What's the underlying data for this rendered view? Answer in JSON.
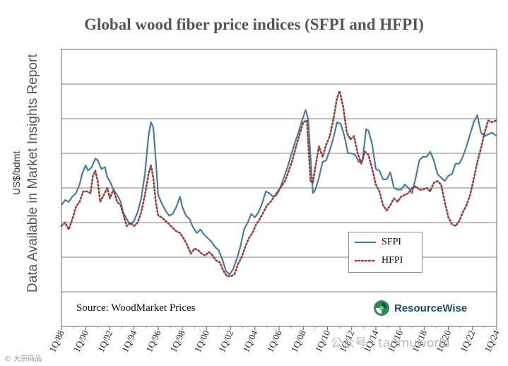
{
  "chart_data": {
    "type": "line",
    "title": "Global wood fiber price indices (SFPI and HFPI)",
    "ylabel": "US$/bdmt",
    "side_note": "Data Available in Market Insights Report",
    "source": "Source: WoodMarket Prices",
    "logo_text": "ResourceWise",
    "x_ticks": [
      "1Q/88",
      "1Q/90",
      "1Q/92",
      "1Q/94",
      "1Q/96",
      "1Q/98",
      "1Q/00",
      "1Q/02",
      "1Q/04",
      "1Q/06",
      "1Q/08",
      "1Q/10",
      "1Q/12",
      "1Q/14",
      "1Q/16",
      "1Q/18",
      "1Q/20",
      "1Q/22",
      "1Q/24"
    ],
    "x_range": [
      1988.0,
      2024.0
    ],
    "y_gridlines": 7,
    "y_range": [
      0,
      8
    ],
    "y_note": "Y-axis values are not labeled; series plotted in relative units.",
    "series": [
      {
        "name": "SFPI",
        "color": "#4a7ba6",
        "style": "solid",
        "points": [
          [
            1988.0,
            3.5
          ],
          [
            1988.3,
            3.65
          ],
          [
            1988.6,
            3.6
          ],
          [
            1988.9,
            3.75
          ],
          [
            1989.2,
            3.85
          ],
          [
            1989.5,
            4.1
          ],
          [
            1989.7,
            4.4
          ],
          [
            1990.0,
            4.65
          ],
          [
            1990.2,
            4.5
          ],
          [
            1990.5,
            4.6
          ],
          [
            1990.8,
            4.85
          ],
          [
            1991.0,
            4.8
          ],
          [
            1991.3,
            4.55
          ],
          [
            1991.6,
            4.6
          ],
          [
            1991.8,
            4.3
          ],
          [
            1992.0,
            4.2
          ],
          [
            1992.3,
            3.95
          ],
          [
            1992.6,
            3.8
          ],
          [
            1992.9,
            3.6
          ],
          [
            1993.1,
            3.3
          ],
          [
            1993.4,
            3.1
          ],
          [
            1993.7,
            2.95
          ],
          [
            1994.0,
            3.05
          ],
          [
            1994.3,
            3.3
          ],
          [
            1994.6,
            3.7
          ],
          [
            1994.9,
            4.4
          ],
          [
            1995.2,
            5.5
          ],
          [
            1995.4,
            5.9
          ],
          [
            1995.6,
            5.75
          ],
          [
            1995.8,
            4.8
          ],
          [
            1996.0,
            3.8
          ],
          [
            1996.3,
            3.55
          ],
          [
            1996.6,
            3.35
          ],
          [
            1996.9,
            3.2
          ],
          [
            1997.2,
            3.25
          ],
          [
            1997.5,
            3.45
          ],
          [
            1997.8,
            3.75
          ],
          [
            1998.0,
            3.45
          ],
          [
            1998.3,
            3.2
          ],
          [
            1998.6,
            3.1
          ],
          [
            1998.9,
            2.85
          ],
          [
            1999.2,
            2.7
          ],
          [
            1999.5,
            2.8
          ],
          [
            1999.8,
            2.65
          ],
          [
            2000.1,
            2.55
          ],
          [
            2000.4,
            2.45
          ],
          [
            2000.7,
            2.3
          ],
          [
            2001.0,
            2.2
          ],
          [
            2001.3,
            1.95
          ],
          [
            2001.6,
            1.6
          ],
          [
            2001.9,
            1.5
          ],
          [
            2002.2,
            1.65
          ],
          [
            2002.5,
            1.95
          ],
          [
            2002.8,
            2.3
          ],
          [
            2003.1,
            2.8
          ],
          [
            2003.4,
            3.0
          ],
          [
            2003.7,
            3.25
          ],
          [
            2004.0,
            3.15
          ],
          [
            2004.3,
            3.3
          ],
          [
            2004.6,
            3.55
          ],
          [
            2004.9,
            3.9
          ],
          [
            2005.2,
            3.85
          ],
          [
            2005.5,
            3.75
          ],
          [
            2005.8,
            3.8
          ],
          [
            2006.1,
            4.0
          ],
          [
            2006.4,
            4.3
          ],
          [
            2006.7,
            4.6
          ],
          [
            2007.0,
            4.95
          ],
          [
            2007.3,
            5.3
          ],
          [
            2007.6,
            5.6
          ],
          [
            2007.9,
            5.95
          ],
          [
            2008.2,
            6.25
          ],
          [
            2008.4,
            6.0
          ],
          [
            2008.6,
            4.9
          ],
          [
            2008.8,
            3.85
          ],
          [
            2009.0,
            3.95
          ],
          [
            2009.3,
            4.3
          ],
          [
            2009.6,
            4.75
          ],
          [
            2009.9,
            4.8
          ],
          [
            2010.2,
            5.1
          ],
          [
            2010.5,
            5.45
          ],
          [
            2010.8,
            5.9
          ],
          [
            2011.1,
            5.85
          ],
          [
            2011.4,
            5.5
          ],
          [
            2011.7,
            5.0
          ],
          [
            2012.0,
            5.0
          ],
          [
            2012.3,
            4.95
          ],
          [
            2012.6,
            4.75
          ],
          [
            2012.9,
            4.8
          ],
          [
            2013.2,
            5.7
          ],
          [
            2013.4,
            5.65
          ],
          [
            2013.7,
            5.25
          ],
          [
            2014.0,
            4.55
          ],
          [
            2014.3,
            4.5
          ],
          [
            2014.6,
            4.25
          ],
          [
            2014.9,
            4.25
          ],
          [
            2015.2,
            4.45
          ],
          [
            2015.5,
            4.0
          ],
          [
            2015.8,
            3.95
          ],
          [
            2016.1,
            3.95
          ],
          [
            2016.4,
            4.1
          ],
          [
            2016.7,
            4.0
          ],
          [
            2017.0,
            3.85
          ],
          [
            2017.3,
            4.3
          ],
          [
            2017.6,
            4.8
          ],
          [
            2017.9,
            4.9
          ],
          [
            2018.2,
            4.9
          ],
          [
            2018.5,
            5.05
          ],
          [
            2018.8,
            4.8
          ],
          [
            2019.1,
            4.4
          ],
          [
            2019.4,
            4.3
          ],
          [
            2019.7,
            4.2
          ],
          [
            2020.0,
            4.35
          ],
          [
            2020.3,
            4.4
          ],
          [
            2020.6,
            4.7
          ],
          [
            2020.9,
            4.7
          ],
          [
            2021.2,
            4.9
          ],
          [
            2021.5,
            5.2
          ],
          [
            2021.8,
            5.55
          ],
          [
            2022.1,
            5.9
          ],
          [
            2022.4,
            6.1
          ],
          [
            2022.7,
            5.6
          ],
          [
            2023.0,
            5.5
          ],
          [
            2023.3,
            5.55
          ],
          [
            2023.6,
            5.6
          ],
          [
            2024.0,
            5.5
          ]
        ]
      },
      {
        "name": "HFPI",
        "color": "#9c3b3b",
        "style": "dotted",
        "points": [
          [
            1988.0,
            2.9
          ],
          [
            1988.3,
            3.0
          ],
          [
            1988.6,
            2.8
          ],
          [
            1988.9,
            3.1
          ],
          [
            1989.2,
            3.45
          ],
          [
            1989.5,
            3.6
          ],
          [
            1989.8,
            3.9
          ],
          [
            1990.1,
            3.9
          ],
          [
            1990.4,
            3.85
          ],
          [
            1990.6,
            4.35
          ],
          [
            1990.8,
            4.5
          ],
          [
            1991.0,
            4.2
          ],
          [
            1991.2,
            3.6
          ],
          [
            1991.5,
            3.8
          ],
          [
            1991.8,
            4.0
          ],
          [
            1992.0,
            3.7
          ],
          [
            1992.3,
            3.95
          ],
          [
            1992.6,
            3.6
          ],
          [
            1992.9,
            3.5
          ],
          [
            1993.1,
            3.25
          ],
          [
            1993.4,
            2.9
          ],
          [
            1993.7,
            3.0
          ],
          [
            1994.0,
            2.9
          ],
          [
            1994.3,
            3.0
          ],
          [
            1994.6,
            3.3
          ],
          [
            1994.9,
            3.8
          ],
          [
            1995.2,
            4.4
          ],
          [
            1995.4,
            4.65
          ],
          [
            1995.6,
            4.3
          ],
          [
            1995.8,
            3.6
          ],
          [
            1996.0,
            3.2
          ],
          [
            1996.3,
            3.15
          ],
          [
            1996.6,
            3.05
          ],
          [
            1996.9,
            2.95
          ],
          [
            1997.2,
            2.85
          ],
          [
            1997.5,
            2.75
          ],
          [
            1997.8,
            2.7
          ],
          [
            1998.1,
            2.55
          ],
          [
            1998.4,
            2.35
          ],
          [
            1998.7,
            2.1
          ],
          [
            1999.0,
            2.25
          ],
          [
            1999.3,
            2.2
          ],
          [
            1999.6,
            2.1
          ],
          [
            1999.9,
            2.05
          ],
          [
            2000.2,
            2.15
          ],
          [
            2000.5,
            2.05
          ],
          [
            2000.8,
            1.9
          ],
          [
            2001.1,
            1.85
          ],
          [
            2001.4,
            1.6
          ],
          [
            2001.7,
            1.45
          ],
          [
            2002.0,
            1.45
          ],
          [
            2002.3,
            1.5
          ],
          [
            2002.6,
            1.8
          ],
          [
            2002.9,
            2.0
          ],
          [
            2003.2,
            2.3
          ],
          [
            2003.5,
            2.55
          ],
          [
            2003.8,
            2.7
          ],
          [
            2004.1,
            2.95
          ],
          [
            2004.4,
            3.1
          ],
          [
            2004.7,
            3.3
          ],
          [
            2005.0,
            3.5
          ],
          [
            2005.3,
            3.6
          ],
          [
            2005.6,
            3.75
          ],
          [
            2005.9,
            3.9
          ],
          [
            2006.2,
            4.05
          ],
          [
            2006.5,
            4.2
          ],
          [
            2006.8,
            4.5
          ],
          [
            2007.1,
            4.8
          ],
          [
            2007.4,
            5.2
          ],
          [
            2007.7,
            5.55
          ],
          [
            2008.0,
            5.9
          ],
          [
            2008.3,
            5.95
          ],
          [
            2008.6,
            4.2
          ],
          [
            2008.8,
            4.15
          ],
          [
            2009.0,
            4.6
          ],
          [
            2009.3,
            5.2
          ],
          [
            2009.6,
            4.9
          ],
          [
            2009.9,
            5.25
          ],
          [
            2010.2,
            5.5
          ],
          [
            2010.5,
            6.0
          ],
          [
            2010.8,
            6.6
          ],
          [
            2011.0,
            6.8
          ],
          [
            2011.3,
            6.35
          ],
          [
            2011.6,
            5.6
          ],
          [
            2011.9,
            5.4
          ],
          [
            2012.2,
            5.5
          ],
          [
            2012.5,
            5.0
          ],
          [
            2012.8,
            4.7
          ],
          [
            2013.1,
            5.05
          ],
          [
            2013.4,
            4.95
          ],
          [
            2013.7,
            4.55
          ],
          [
            2014.0,
            4.1
          ],
          [
            2014.3,
            3.9
          ],
          [
            2014.6,
            3.5
          ],
          [
            2014.9,
            3.35
          ],
          [
            2015.2,
            3.5
          ],
          [
            2015.5,
            3.7
          ],
          [
            2015.8,
            3.6
          ],
          [
            2016.1,
            3.75
          ],
          [
            2016.4,
            3.8
          ],
          [
            2016.7,
            3.85
          ],
          [
            2017.0,
            4.0
          ],
          [
            2017.3,
            4.05
          ],
          [
            2017.6,
            3.95
          ],
          [
            2017.9,
            3.95
          ],
          [
            2018.2,
            4.0
          ],
          [
            2018.5,
            3.9
          ],
          [
            2018.8,
            4.15
          ],
          [
            2019.1,
            4.2
          ],
          [
            2019.4,
            4.1
          ],
          [
            2019.7,
            3.6
          ],
          [
            2020.0,
            3.15
          ],
          [
            2020.3,
            2.95
          ],
          [
            2020.6,
            2.9
          ],
          [
            2020.9,
            3.05
          ],
          [
            2021.2,
            3.3
          ],
          [
            2021.5,
            3.5
          ],
          [
            2021.8,
            3.8
          ],
          [
            2022.1,
            4.25
          ],
          [
            2022.4,
            4.75
          ],
          [
            2022.7,
            5.15
          ],
          [
            2023.0,
            5.6
          ],
          [
            2023.3,
            5.95
          ],
          [
            2023.6,
            5.9
          ],
          [
            2024.0,
            5.95
          ]
        ]
      }
    ]
  },
  "overlay": {
    "watermark_left": "© 大宗商品",
    "watermark_right": "公众号 · taomuworld"
  }
}
